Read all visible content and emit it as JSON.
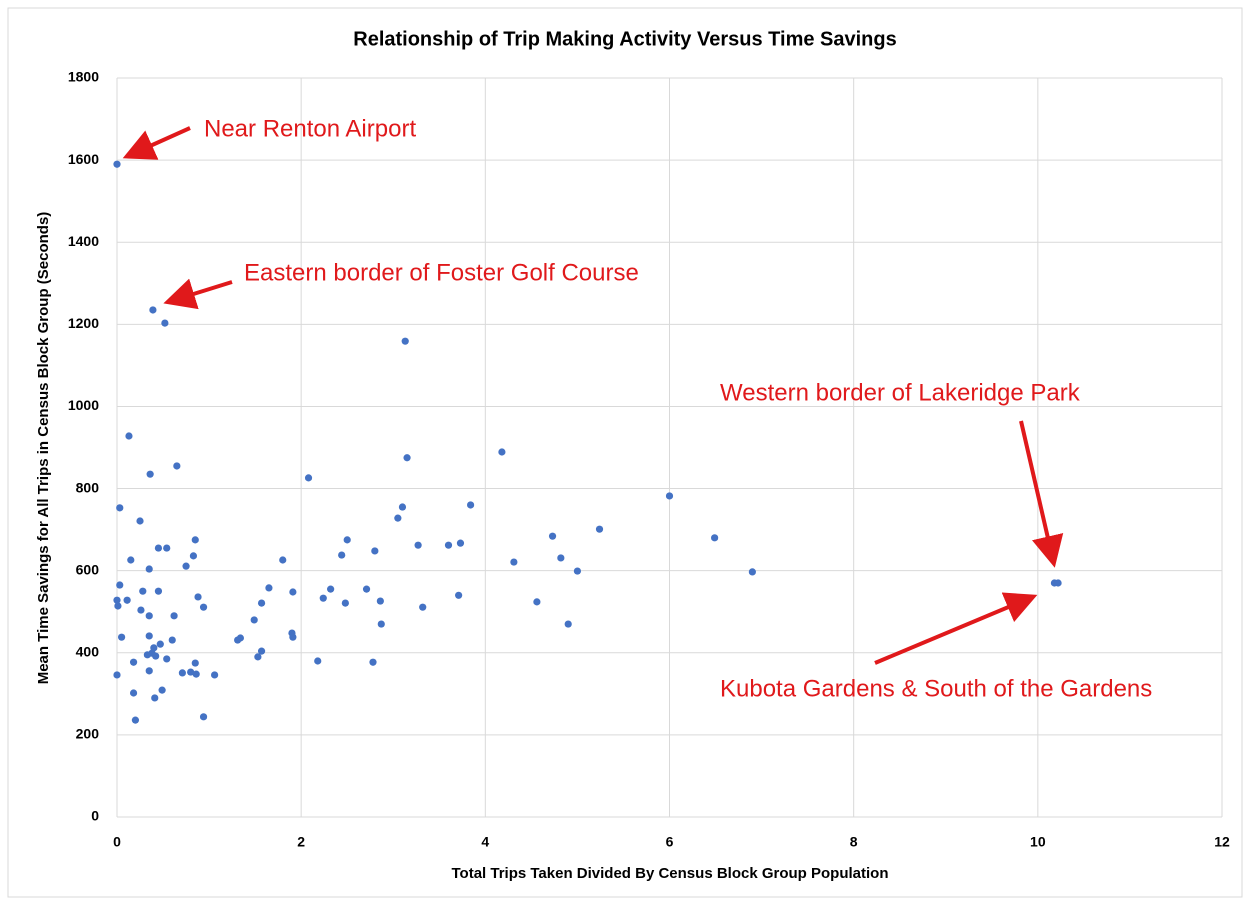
{
  "chart_data": {
    "type": "scatter",
    "title": "Relationship of Trip Making Activity Versus Time Savings",
    "x_label": "Total Trips Taken Divided By Census Block Group Population",
    "y_label": "Mean Time Savings for All Trips in Census Block Group (Seconds)",
    "color": "#4472c4",
    "x": [
      0,
      0.39,
      0.52,
      3.13,
      0.13,
      4.18,
      3.15,
      0.65,
      0.36,
      2.08,
      6.0,
      3.84,
      3.1,
      0.03,
      3.05,
      0.25,
      4.73,
      6.49,
      0.85,
      2.5,
      5.24,
      3.27,
      3.6,
      3.73,
      0.45,
      0.54,
      2.8,
      2.44,
      0.83,
      4.82,
      1.8,
      0.15,
      4.31,
      0.75,
      0.35,
      6.9,
      5.0,
      10.18,
      10.22,
      0.03,
      1.65,
      2.32,
      2.71,
      0.28,
      0.45,
      1.91,
      3.71,
      0.88,
      2.24,
      0,
      0.11,
      2.86,
      4.56,
      2.48,
      1.57,
      0.01,
      0.94,
      3.32,
      0.26,
      0.35,
      0.62,
      1.49,
      4.9,
      2.87,
      1.9,
      1.91,
      0.05,
      0.35,
      1.31,
      1.34,
      0.6,
      0.47,
      0.4,
      0.38,
      1.57,
      1.53,
      0.42,
      0.33,
      0.54,
      2.18,
      2.78,
      0.18,
      0.85,
      0.8,
      0.35,
      0.71,
      0.86,
      0,
      1.06,
      0.49,
      0.18,
      0.41,
      0.94,
      0.2
    ],
    "values": [
      1590,
      1235,
      1203,
      1159,
      928,
      889,
      875,
      855,
      835,
      826,
      782,
      760,
      755,
      753,
      728,
      721,
      684,
      680,
      675,
      675,
      701,
      662,
      662,
      667,
      655,
      655,
      648,
      638,
      636,
      631,
      626,
      626,
      621,
      611,
      604,
      597,
      599,
      570,
      570,
      565,
      558,
      555,
      555,
      550,
      550,
      548,
      540,
      536,
      533,
      528,
      528,
      526,
      524,
      521,
      521,
      514,
      511,
      511,
      504,
      490,
      490,
      480,
      470,
      470,
      448,
      438,
      438,
      441,
      431,
      436,
      431,
      421,
      412,
      399,
      404,
      390,
      392,
      395,
      385,
      380,
      377,
      377,
      375,
      353,
      356,
      351,
      348,
      346,
      346,
      309,
      302,
      290,
      244,
      236
    ],
    "xlim": [
      0,
      12
    ],
    "xticks": [
      0,
      2,
      4,
      6,
      8,
      10,
      12
    ],
    "ylim": [
      0,
      1800
    ],
    "yticks": [
      0,
      200,
      400,
      600,
      800,
      1000,
      1200,
      1400,
      1600,
      1800
    ],
    "grid": true,
    "annotations": [
      "Near Renton Airport",
      "Eastern border of Foster Golf Course",
      "Western border of Lakeridge Park",
      "Kubota Gardens & South of the Gardens"
    ]
  }
}
